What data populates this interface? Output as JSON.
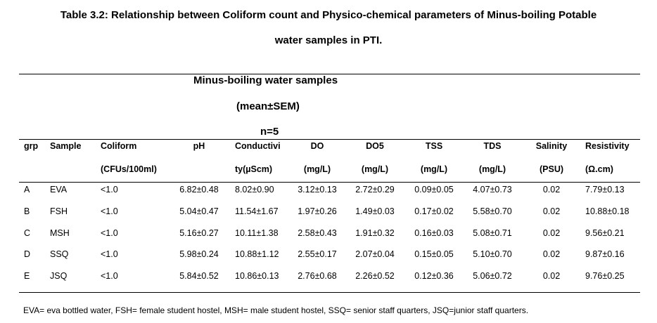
{
  "table": {
    "title_line1": "Table 3.2:  Relationship between Coliform count and Physico-chemical parameters of Minus-boiling Potable",
    "title_line2": "water samples in PTI.",
    "group_label_1": "Minus-boiling water samples",
    "group_label_2": "(mean±SEM)",
    "group_label_3": "n=5",
    "columns": [
      {
        "line1": "grp",
        "line2": ""
      },
      {
        "line1": "Sample",
        "line2": ""
      },
      {
        "line1": "Coliform",
        "line2": "(CFUs/100ml)"
      },
      {
        "line1": "pH",
        "line2": ""
      },
      {
        "line1": "Conductivi",
        "line2": "ty(µScm)"
      },
      {
        "line1": "DO",
        "line2": "(mg/L)"
      },
      {
        "line1": "DO5",
        "line2": "(mg/L)"
      },
      {
        "line1": "TSS",
        "line2": "(mg/L)"
      },
      {
        "line1": "TDS",
        "line2": "(mg/L)"
      },
      {
        "line1": "Salinity",
        "line2": "(PSU)"
      },
      {
        "line1": "Resistivity",
        "line2": "(Ω.cm)"
      }
    ],
    "rows": [
      [
        "A",
        "EVA",
        "<1.0",
        "6.82±0.48",
        "8.02±0.90",
        "3.12±0.13",
        "2.72±0.29",
        "0.09±0.05",
        "4.07±0.73",
        "0.02",
        "7.79±0.13"
      ],
      [
        "B",
        "FSH",
        "<1.0",
        "5.04±0.47",
        "11.54±1.67",
        "1.97±0.26",
        "1.49±0.03",
        "0.17±0.02",
        "5.58±0.70",
        "0.02",
        "10.88±0.18"
      ],
      [
        "C",
        "MSH",
        "<1.0",
        "5.16±0.27",
        "10.11±1.38",
        "2.58±0.43",
        "1.91±0.32",
        "0.16±0.03",
        "5.08±0.71",
        "0.02",
        "9.56±0.21"
      ],
      [
        "D",
        "SSQ",
        "<1.0",
        "5.98±0.24",
        "10.88±1.12",
        "2.55±0.17",
        "2.07±0.04",
        "0.15±0.05",
        "5.10±0.70",
        "0.02",
        "9.87±0.16"
      ],
      [
        "E",
        "JSQ",
        "<1.0",
        "5.84±0.52",
        "10.86±0.13",
        "2.76±0.68",
        "2.26±0.52",
        "0.12±0.36",
        "5.06±0.72",
        "0.02",
        "9.76±0.25"
      ]
    ],
    "footnote": "EVA= eva bottled water, FSH= female student hostel, MSH= male student hostel, SSQ= senior staff quarters, JSQ=junior staff quarters."
  }
}
